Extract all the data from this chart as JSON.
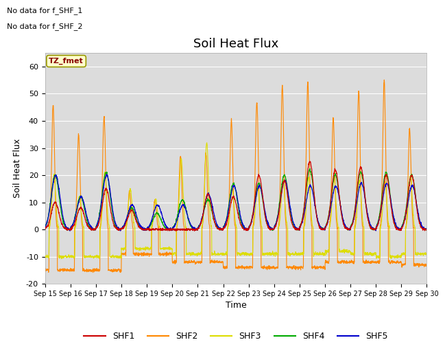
{
  "title": "Soil Heat Flux",
  "xlabel": "Time",
  "ylabel": "Soil Heat Flux",
  "ylim": [
    -20,
    65
  ],
  "yticks": [
    -20,
    -10,
    0,
    10,
    20,
    30,
    40,
    50,
    60
  ],
  "xlim": [
    0,
    15
  ],
  "xtick_labels": [
    "Sep 15",
    "Sep 16",
    "Sep 17",
    "Sep 18",
    "Sep 19",
    "Sep 20",
    "Sep 21",
    "Sep 22",
    "Sep 23",
    "Sep 24",
    "Sep 25",
    "Sep 26",
    "Sep 27",
    "Sep 28",
    "Sep 29",
    "Sep 30"
  ],
  "no_data_text1": "No data for f_SHF_1",
  "no_data_text2": "No data for f_SHF_2",
  "tz_label": "TZ_fmet",
  "colors": {
    "SHF1": "#cc0000",
    "SHF2": "#ff8800",
    "SHF3": "#dddd00",
    "SHF4": "#00aa00",
    "SHF5": "#0000cc"
  },
  "bg_color": "#dcdcdc",
  "title_fontsize": 13,
  "label_fontsize": 9,
  "tick_fontsize": 8
}
